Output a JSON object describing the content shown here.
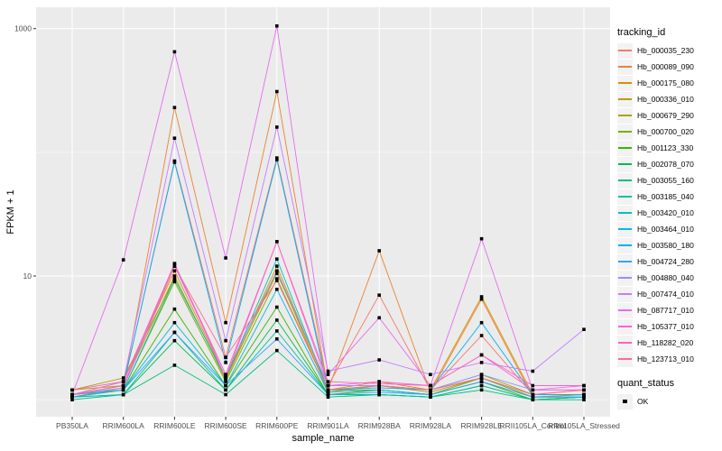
{
  "figure": {
    "background": "#FFFFFF",
    "panel_background": "#EBEBEB",
    "grid_color": "#FFFFFF",
    "axis_text_color": "#4D4D4D",
    "tick_color": "#333333",
    "point_color": "#000000"
  },
  "axes": {
    "x_title": "sample_name",
    "y_title": "FPKM + 1",
    "y_tick_labels": [
      "1000",
      "10"
    ],
    "y_tick_values": [
      1000,
      10
    ],
    "y_minor_values": [
      100,
      1
    ]
  },
  "legend_tracking": {
    "title": "tracking_id"
  },
  "legend_quant": {
    "title": "quant_status",
    "items": [
      {
        "label": "OK",
        "marker": "black-square"
      }
    ]
  },
  "chart_data": {
    "type": "line",
    "title": "",
    "xlabel": "sample_name",
    "ylabel": "FPKM + 1",
    "y_scale": "log10",
    "ylim": [
      0.73,
      1490
    ],
    "y_major_breaks": [
      10,
      1000
    ],
    "y_minor_breaks": [
      1,
      100
    ],
    "grid": true,
    "legend_position": "right",
    "point_marker": "black-square",
    "x_categories": [
      "PB350LA",
      "RRIM600LA",
      "RRIM600LE",
      "RRIM600SE",
      "RRIM600PE",
      "RRIM901LA",
      "RRIM928BA",
      "RRIM928LA",
      "RRIM928LE",
      "RRII105LA_Control",
      "RRII105LA_Stressed"
    ],
    "series": [
      {
        "name": "Hb_000035_230",
        "color": "#F8766D",
        "values": [
          1.1,
          1.3,
          85,
          2.2,
          90,
          1.3,
          7.0,
          1.2,
          3.3,
          1.1,
          1.2
        ]
      },
      {
        "name": "Hb_000089_090",
        "color": "#EA8331",
        "values": [
          1.05,
          1.25,
          230,
          4.2,
          310,
          1.2,
          16,
          1.15,
          6.5,
          1.05,
          1.1
        ]
      },
      {
        "name": "Hb_000175_080",
        "color": "#D89000",
        "values": [
          1.1,
          1.4,
          11,
          1.5,
          12,
          1.2,
          1.4,
          1.2,
          6.8,
          1.1,
          1.1
        ]
      },
      {
        "name": "Hb_000336_010",
        "color": "#C09B00",
        "values": [
          1.2,
          1.3,
          10,
          1.45,
          11,
          1.15,
          1.3,
          1.15,
          1.5,
          1.05,
          1.1
        ]
      },
      {
        "name": "Hb_000679_290",
        "color": "#A3A500",
        "values": [
          1.2,
          1.5,
          9.5,
          1.5,
          10.5,
          1.3,
          1.3,
          1.2,
          1.6,
          1.1,
          1.1
        ]
      },
      {
        "name": "Hb_000700_020",
        "color": "#7CAE00",
        "values": [
          1.1,
          1.2,
          9.0,
          1.4,
          9.5,
          1.2,
          1.2,
          1.1,
          1.5,
          1.05,
          1.05
        ]
      },
      {
        "name": "Hb_001123_330",
        "color": "#39B600",
        "values": [
          1.05,
          1.2,
          5.4,
          1.3,
          5.6,
          1.1,
          1.2,
          1.1,
          1.4,
          1.0,
          1.05
        ]
      },
      {
        "name": "Hb_002078_070",
        "color": "#00BB4E",
        "values": [
          1.05,
          1.1,
          3.0,
          1.2,
          4.4,
          1.1,
          1.1,
          1.05,
          1.3,
          1.0,
          1.05
        ]
      },
      {
        "name": "Hb_003055_160",
        "color": "#00BF7D",
        "values": [
          1.0,
          1.1,
          1.9,
          1.1,
          2.5,
          1.05,
          1.1,
          1.05,
          1.2,
          1.0,
          1.0
        ]
      },
      {
        "name": "Hb_003185_040",
        "color": "#00C1A3",
        "values": [
          1.05,
          1.1,
          3.5,
          1.2,
          3.6,
          1.1,
          1.1,
          1.05,
          1.3,
          1.0,
          1.05
        ]
      },
      {
        "name": "Hb_003420_010",
        "color": "#00BFC4",
        "values": [
          1.1,
          1.2,
          9.5,
          1.5,
          13.7,
          1.2,
          1.3,
          1.2,
          1.5,
          1.1,
          1.1
        ]
      },
      {
        "name": "Hb_003464_010",
        "color": "#00BAE0",
        "values": [
          1.05,
          1.2,
          4.2,
          1.3,
          7.8,
          1.15,
          1.2,
          1.1,
          1.4,
          1.05,
          1.05
        ]
      },
      {
        "name": "Hb_003580_180",
        "color": "#00B0F6",
        "values": [
          1.1,
          1.3,
          83,
          2.0,
          87,
          1.2,
          1.25,
          1.2,
          4.2,
          1.1,
          1.1
        ]
      },
      {
        "name": "Hb_004724_280",
        "color": "#35A2FF",
        "values": [
          1.05,
          1.2,
          3.5,
          1.3,
          3.1,
          1.1,
          1.15,
          1.1,
          1.4,
          1.05,
          1.05
        ]
      },
      {
        "name": "Hb_004880_040",
        "color": "#9590FF",
        "values": [
          1.1,
          1.25,
          12,
          1.6,
          11,
          1.3,
          1.3,
          1.2,
          1.6,
          1.2,
          1.2
        ]
      },
      {
        "name": "Hb_007474_010",
        "color": "#C77CFF",
        "values": [
          1.1,
          1.4,
          130,
          3.0,
          160,
          1.7,
          2.1,
          1.6,
          2.0,
          1.7,
          3.7
        ]
      },
      {
        "name": "Hb_087717_010",
        "color": "#E76BF3",
        "values": [
          1.1,
          13.5,
          650,
          14,
          1050,
          1.6,
          4.6,
          1.3,
          20,
          1.2,
          1.3
        ]
      },
      {
        "name": "Hb_105377_010",
        "color": "#FA62DB",
        "values": [
          1.1,
          1.3,
          12.6,
          1.5,
          19,
          1.3,
          1.4,
          1.3,
          2.3,
          1.2,
          1.2
        ]
      },
      {
        "name": "Hb_118282_020",
        "color": "#FF62BC",
        "values": [
          1.2,
          1.4,
          12.6,
          1.6,
          19,
          1.4,
          1.35,
          1.3,
          2.3,
          1.3,
          1.3
        ]
      },
      {
        "name": "Hb_123713_010",
        "color": "#FF6A98",
        "values": [
          1.1,
          1.3,
          12,
          2.2,
          9.2,
          1.2,
          1.3,
          1.2,
          1.5,
          1.1,
          1.2
        ]
      }
    ]
  }
}
